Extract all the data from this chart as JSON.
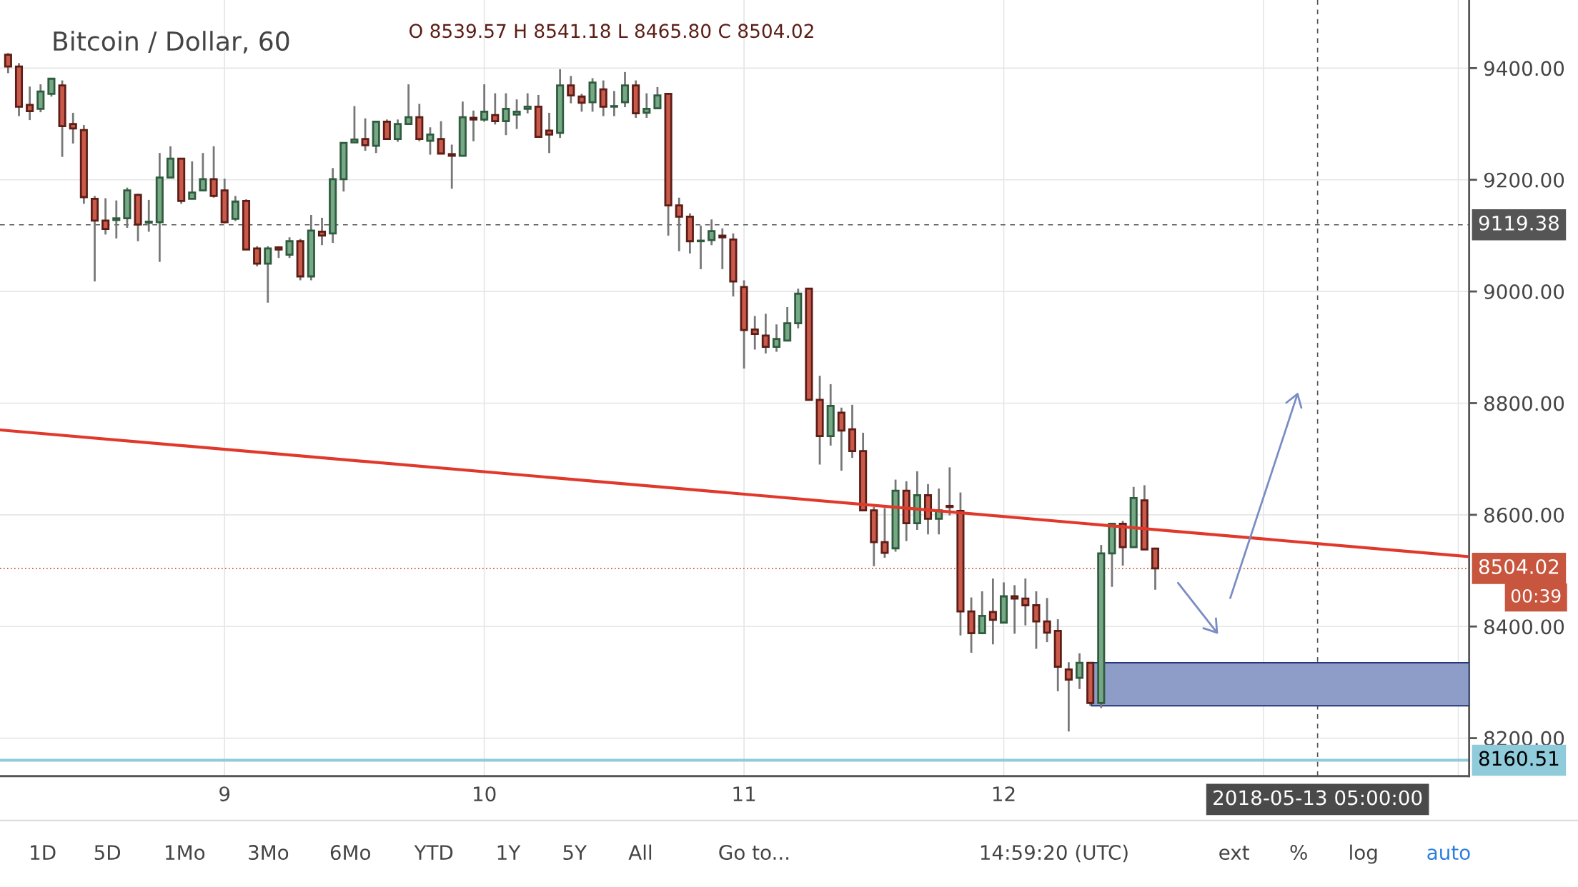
{
  "chart_data": {
    "type": "candlestick",
    "title": "Bitcoin / Dollar, 60",
    "annotations": [
      "O 8539.57 H 8541.18 L 8465.80 C 8504.02",
      "00:39",
      "1D",
      "5D",
      "1Mo",
      "3Mo",
      "6Mo",
      "YTD",
      "1Y",
      "5Y",
      "All",
      "Go to...",
      "14:59:20 (UTC)",
      "ext",
      "%",
      "log",
      "auto"
    ],
    "x": [
      "2018-05-08T04:00",
      "2018-05-08T05:00",
      "2018-05-08T06:00",
      "2018-05-08T07:00",
      "2018-05-08T08:00",
      "2018-05-08T09:00",
      "2018-05-08T10:00",
      "2018-05-08T11:00",
      "2018-05-08T12:00",
      "2018-05-08T13:00",
      "2018-05-08T14:00",
      "2018-05-08T15:00",
      "2018-05-08T16:00",
      "2018-05-08T17:00",
      "2018-05-08T18:00",
      "2018-05-08T19:00",
      "2018-05-08T20:00",
      "2018-05-08T21:00",
      "2018-05-08T22:00",
      "2018-05-08T23:00",
      "2018-05-09T00:00",
      "2018-05-09T01:00",
      "2018-05-09T02:00",
      "2018-05-09T03:00",
      "2018-05-09T04:00",
      "2018-05-09T05:00",
      "2018-05-09T06:00",
      "2018-05-09T07:00",
      "2018-05-09T08:00",
      "2018-05-09T09:00",
      "2018-05-09T10:00",
      "2018-05-09T11:00",
      "2018-05-09T12:00",
      "2018-05-09T13:00",
      "2018-05-09T14:00",
      "2018-05-09T15:00",
      "2018-05-09T16:00",
      "2018-05-09T17:00",
      "2018-05-09T18:00",
      "2018-05-09T19:00",
      "2018-05-09T20:00",
      "2018-05-09T21:00",
      "2018-05-09T22:00",
      "2018-05-09T23:00",
      "2018-05-10T00:00",
      "2018-05-10T01:00",
      "2018-05-10T02:00",
      "2018-05-10T03:00",
      "2018-05-10T04:00",
      "2018-05-10T05:00",
      "2018-05-10T06:00",
      "2018-05-10T07:00",
      "2018-05-10T08:00",
      "2018-05-10T09:00",
      "2018-05-10T10:00",
      "2018-05-10T11:00",
      "2018-05-10T12:00",
      "2018-05-10T13:00",
      "2018-05-10T14:00",
      "2018-05-10T15:00",
      "2018-05-10T16:00",
      "2018-05-10T17:00",
      "2018-05-10T18:00",
      "2018-05-10T19:00",
      "2018-05-10T20:00",
      "2018-05-10T21:00",
      "2018-05-10T22:00",
      "2018-05-10T23:00",
      "2018-05-11T00:00",
      "2018-05-11T01:00",
      "2018-05-11T02:00",
      "2018-05-11T03:00",
      "2018-05-11T04:00",
      "2018-05-11T05:00",
      "2018-05-11T06:00",
      "2018-05-11T07:00",
      "2018-05-11T08:00",
      "2018-05-11T09:00",
      "2018-05-11T10:00",
      "2018-05-11T11:00",
      "2018-05-11T12:00",
      "2018-05-11T13:00",
      "2018-05-11T14:00",
      "2018-05-11T15:00",
      "2018-05-11T16:00",
      "2018-05-11T17:00",
      "2018-05-11T18:00",
      "2018-05-11T19:00",
      "2018-05-11T20:00",
      "2018-05-11T21:00",
      "2018-05-11T22:00",
      "2018-05-11T23:00",
      "2018-05-12T00:00",
      "2018-05-12T01:00",
      "2018-05-12T02:00",
      "2018-05-12T03:00",
      "2018-05-12T04:00",
      "2018-05-12T05:00",
      "2018-05-12T06:00",
      "2018-05-12T07:00",
      "2018-05-12T08:00",
      "2018-05-12T09:00",
      "2018-05-12T10:00",
      "2018-05-12T11:00",
      "2018-05-12T12:00",
      "2018-05-12T13:00",
      "2018-05-12T14:00"
    ],
    "ohlc": [
      [
        9424,
        9427,
        9391,
        9403
      ],
      [
        9403,
        9409,
        9314,
        9331
      ],
      [
        9334,
        9367,
        9307,
        9323
      ],
      [
        9327,
        9371,
        9321,
        9358
      ],
      [
        9354,
        9381,
        9349,
        9381
      ],
      [
        9369,
        9378,
        9241,
        9296
      ],
      [
        9300,
        9320,
        9265,
        9292
      ],
      [
        9289,
        9298,
        9157,
        9169
      ],
      [
        9166,
        9171,
        9018,
        9127
      ],
      [
        9127,
        9167,
        9102,
        9112
      ],
      [
        9128,
        9163,
        9095,
        9131
      ],
      [
        9131,
        9186,
        9114,
        9181
      ],
      [
        9173,
        9175,
        9090,
        9120
      ],
      [
        9123,
        9164,
        9107,
        9125
      ],
      [
        9124,
        9248,
        9053,
        9204
      ],
      [
        9204,
        9260,
        9204,
        9238
      ],
      [
        9238,
        9238,
        9157,
        9162
      ],
      [
        9166,
        9233,
        9166,
        9177
      ],
      [
        9181,
        9248,
        9181,
        9201
      ],
      [
        9201,
        9260,
        9168,
        9171
      ],
      [
        9181,
        9202,
        9122,
        9124
      ],
      [
        9130,
        9171,
        9126,
        9161
      ],
      [
        9162,
        9165,
        9075,
        9075
      ],
      [
        9077,
        9081,
        9045,
        9050
      ],
      [
        9050,
        9081,
        8980,
        9077
      ],
      [
        9079,
        9081,
        9060,
        9075
      ],
      [
        9066,
        9097,
        9060,
        9090
      ],
      [
        9090,
        9094,
        9020,
        9027
      ],
      [
        9027,
        9137,
        9020,
        9109
      ],
      [
        9107,
        9132,
        9083,
        9100
      ],
      [
        9104,
        9221,
        9087,
        9201
      ],
      [
        9201,
        9266,
        9179,
        9266
      ],
      [
        9267,
        9332,
        9267,
        9272
      ],
      [
        9273,
        9310,
        9252,
        9262
      ],
      [
        9261,
        9304,
        9248,
        9304
      ],
      [
        9304,
        9308,
        9273,
        9273
      ],
      [
        9273,
        9308,
        9268,
        9300
      ],
      [
        9300,
        9371,
        9300,
        9312
      ],
      [
        9312,
        9336,
        9269,
        9273
      ],
      [
        9270,
        9294,
        9245,
        9281
      ],
      [
        9273,
        9305,
        9247,
        9247
      ],
      [
        9246,
        9263,
        9184,
        9243
      ],
      [
        9243,
        9340,
        9243,
        9312
      ],
      [
        9311,
        9324,
        9269,
        9308
      ],
      [
        9308,
        9371,
        9304,
        9322
      ],
      [
        9316,
        9355,
        9299,
        9305
      ],
      [
        9305,
        9355,
        9280,
        9327
      ],
      [
        9317,
        9344,
        9291,
        9322
      ],
      [
        9327,
        9355,
        9319,
        9331
      ],
      [
        9331,
        9352,
        9277,
        9277
      ],
      [
        9288,
        9320,
        9248,
        9281
      ],
      [
        9284,
        9398,
        9275,
        9369
      ],
      [
        9369,
        9386,
        9337,
        9351
      ],
      [
        9349,
        9354,
        9322,
        9338
      ],
      [
        9339,
        9382,
        9322,
        9374
      ],
      [
        9362,
        9378,
        9314,
        9331
      ],
      [
        9331,
        9359,
        9314,
        9332
      ],
      [
        9339,
        9393,
        9330,
        9369
      ],
      [
        9369,
        9378,
        9311,
        9319
      ],
      [
        9320,
        9355,
        9311,
        9327
      ],
      [
        9328,
        9366,
        9328,
        9351
      ],
      [
        9354,
        9354,
        9100,
        9154
      ],
      [
        9154,
        9168,
        9072,
        9134
      ],
      [
        9134,
        9140,
        9068,
        9090
      ],
      [
        9090,
        9118,
        9040,
        9091
      ],
      [
        9092,
        9129,
        9083,
        9108
      ],
      [
        9100,
        9113,
        9040,
        9097
      ],
      [
        9093,
        9104,
        8991,
        9018
      ],
      [
        9008,
        9020,
        8862,
        8931
      ],
      [
        8932,
        8956,
        8896,
        8924
      ],
      [
        8921,
        8960,
        8889,
        8901
      ],
      [
        8901,
        8941,
        8892,
        8915
      ],
      [
        8912,
        8972,
        8912,
        8943
      ],
      [
        8943,
        9005,
        8934,
        8996
      ],
      [
        9005,
        9005,
        8806,
        8806
      ],
      [
        8806,
        8849,
        8690,
        8741
      ],
      [
        8741,
        8834,
        8724,
        8795
      ],
      [
        8783,
        8792,
        8679,
        8751
      ],
      [
        8753,
        8797,
        8702,
        8714
      ],
      [
        8714,
        8747,
        8608,
        8608
      ],
      [
        8608,
        8614,
        8508,
        8551
      ],
      [
        8551,
        8612,
        8523,
        8532
      ],
      [
        8540,
        8663,
        8534,
        8643
      ],
      [
        8643,
        8660,
        8553,
        8585
      ],
      [
        8585,
        8678,
        8573,
        8635
      ],
      [
        8635,
        8655,
        8565,
        8593
      ],
      [
        8593,
        8647,
        8565,
        8608
      ],
      [
        8616,
        8685,
        8599,
        8614
      ],
      [
        8607,
        8640,
        8384,
        8427
      ],
      [
        8427,
        8452,
        8353,
        8388
      ],
      [
        8388,
        8463,
        8388,
        8419
      ],
      [
        8426,
        8486,
        8368,
        8412
      ],
      [
        8407,
        8479,
        8407,
        8454
      ],
      [
        8454,
        8474,
        8387,
        8450
      ],
      [
        8450,
        8486,
        8402,
        8438
      ],
      [
        8438,
        8463,
        8360,
        8409
      ],
      [
        8409,
        8451,
        8372,
        8389
      ],
      [
        8392,
        8413,
        8284,
        8328
      ],
      [
        8323,
        8336,
        8212,
        8305
      ],
      [
        8308,
        8352,
        8288,
        8335
      ],
      [
        8335,
        8335,
        8258,
        8263
      ],
      [
        8263,
        8546,
        8254,
        8531
      ],
      [
        8531,
        8584,
        8471,
        8584
      ],
      [
        8584,
        8589,
        8509,
        8542
      ],
      [
        8542,
        8650,
        8542,
        8630
      ],
      [
        8626,
        8653,
        8538,
        8538
      ],
      [
        8539.57,
        8541.18,
        8465.8,
        8504.02
      ]
    ],
    "series": [
      {
        "type": "line",
        "color": "#e0392b",
        "x": [
          "2018-05-08T03:15",
          "2018-05-13T19:00"
        ],
        "values": [
          8752,
          8525
        ]
      }
    ],
    "ref_lines": [
      {
        "axis": "y",
        "value": 9119.38,
        "label": "9119.38",
        "color": "#555555",
        "line_style": "dashed"
      },
      {
        "axis": "y",
        "value": 8504.02,
        "label": "8504.02",
        "color": "#c8553d",
        "line_style": "dotted"
      },
      {
        "axis": "y",
        "value": 8160.51,
        "label": "8160.51",
        "color": "#8fcbdb",
        "line_style": "solid"
      },
      {
        "axis": "x",
        "value": "2018-05-13T05:00",
        "label": "2018-05-13 05:00:00",
        "color": "#555555",
        "line_style": "dashed"
      }
    ],
    "bands": [
      {
        "axis": "y",
        "from": 8258,
        "to": 8335,
        "color": "#8e9dc8"
      }
    ],
    "xlim": [
      "2018-05-08T03:15",
      "2018-05-13T19:00"
    ],
    "xticks": [
      {
        "value": "2018-05-09",
        "label": "9"
      },
      {
        "value": "2018-05-10",
        "label": "10"
      },
      {
        "value": "2018-05-11",
        "label": "11"
      },
      {
        "value": "2018-05-12",
        "label": "12"
      },
      {
        "value": "2018-05-13",
        "label": null
      },
      {
        "value": "2018-05-13T18:00",
        "label": null
      }
    ],
    "ylim": [
      8132,
      9522
    ],
    "yticks": [
      {
        "value": 8200,
        "label": "8200.00"
      },
      {
        "value": 8400,
        "label": "8400.00"
      },
      {
        "value": 8600,
        "label": "8600.00"
      },
      {
        "value": 8800,
        "label": "8800.00"
      },
      {
        "value": 9000,
        "label": "9000.00"
      },
      {
        "value": 9200,
        "label": "9200.00"
      },
      {
        "value": 9400,
        "label": "9400.00"
      }
    ],
    "grid": true
  }
}
